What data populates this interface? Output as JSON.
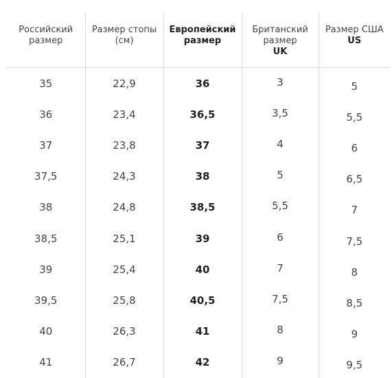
{
  "headers": {
    "ru": "Российский размер",
    "foot": "Размер стопы (см)",
    "eu": "Европейский размер",
    "uk": "Британский размер",
    "uk_unit": "UK",
    "us": "Размер США",
    "us_unit": "US"
  },
  "rows": [
    {
      "ru": "35",
      "foot": "22,9",
      "eu": "36",
      "uk": "3",
      "us": "5"
    },
    {
      "ru": "36",
      "foot": "23,4",
      "eu": "36,5",
      "uk": "3,5",
      "us": "5,5"
    },
    {
      "ru": "37",
      "foot": "23,8",
      "eu": "37",
      "uk": "4",
      "us": "6"
    },
    {
      "ru": "37,5",
      "foot": "24,3",
      "eu": "38",
      "uk": "5",
      "us": "6,5"
    },
    {
      "ru": "38",
      "foot": "24,8",
      "eu": "38,5",
      "uk": "5,5",
      "us": "7"
    },
    {
      "ru": "38,5",
      "foot": "25,1",
      "eu": "39",
      "uk": "6",
      "us": "7,5"
    },
    {
      "ru": "39",
      "foot": "25,4",
      "eu": "40",
      "uk": "7",
      "us": "8"
    },
    {
      "ru": "39,5",
      "foot": "25,8",
      "eu": "40,5",
      "uk": "7,5",
      "us": "8,5"
    },
    {
      "ru": "40",
      "foot": "26,3",
      "eu": "41",
      "uk": "8",
      "us": "9"
    },
    {
      "ru": "41",
      "foot": "26,7",
      "eu": "42",
      "uk": "9",
      "us": "9,5"
    }
  ]
}
